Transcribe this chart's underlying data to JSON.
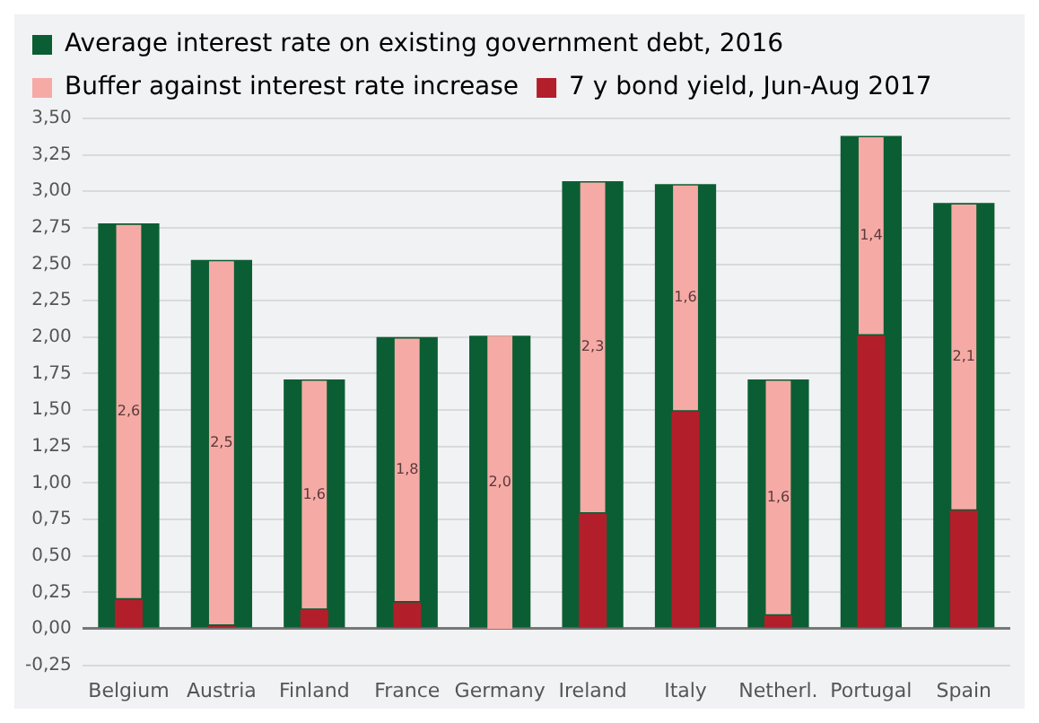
{
  "chart_data": {
    "type": "bar",
    "categories": [
      "Belgium",
      "Austria",
      "Finland",
      "France",
      "Germany",
      "Ireland",
      "Italy",
      "Netherl.",
      "Portugal",
      "Spain"
    ],
    "series": [
      {
        "name": "Average interest rate on existing government debt, 2016",
        "color": "#0b5e33",
        "values": [
          2.78,
          2.53,
          1.71,
          2.0,
          2.01,
          3.07,
          3.05,
          1.71,
          3.38,
          2.92
        ]
      },
      {
        "name": "Buffer against interest rate increase",
        "color": "#f6aaa6",
        "base": [
          0.2,
          0.02,
          0.13,
          0.18,
          -0.01,
          0.79,
          1.49,
          0.09,
          2.01,
          0.81
        ],
        "values": [
          2.58,
          2.51,
          1.58,
          1.82,
          2.03,
          2.28,
          1.56,
          1.62,
          1.37,
          2.11
        ],
        "value_labels": [
          "2,6",
          "2,5",
          "1,6",
          "1,8",
          "2,0",
          "2,3",
          "1,6",
          "1,6",
          "1,4",
          "2,1"
        ]
      },
      {
        "name": "7 y bond yield, Jun-Aug 2017",
        "color": "#b31e2b",
        "values": [
          0.2,
          0.02,
          0.13,
          0.18,
          -0.01,
          0.79,
          1.49,
          0.09,
          2.01,
          0.81
        ]
      }
    ],
    "ylim": [
      -0.25,
      3.5
    ],
    "yticks": [
      {
        "value": -0.25,
        "label": "-0,25"
      },
      {
        "value": 0,
        "label": "0,00"
      },
      {
        "value": 0.25,
        "label": "0,25"
      },
      {
        "value": 0.5,
        "label": "0,50"
      },
      {
        "value": 0.75,
        "label": "0,75"
      },
      {
        "value": 1,
        "label": "1,00"
      },
      {
        "value": 1.25,
        "label": "1,25"
      },
      {
        "value": 1.5,
        "label": "1,50"
      },
      {
        "value": 1.75,
        "label": "1,75"
      },
      {
        "value": 2,
        "label": "2,00"
      },
      {
        "value": 2.25,
        "label": "2,25"
      },
      {
        "value": 2.5,
        "label": "2,50"
      },
      {
        "value": 2.75,
        "label": "2,75"
      },
      {
        "value": 3,
        "label": "3,00"
      },
      {
        "value": 3.25,
        "label": "3,25"
      },
      {
        "value": 3.5,
        "label": "3,50"
      }
    ],
    "grid": "y",
    "legend": "top left"
  }
}
